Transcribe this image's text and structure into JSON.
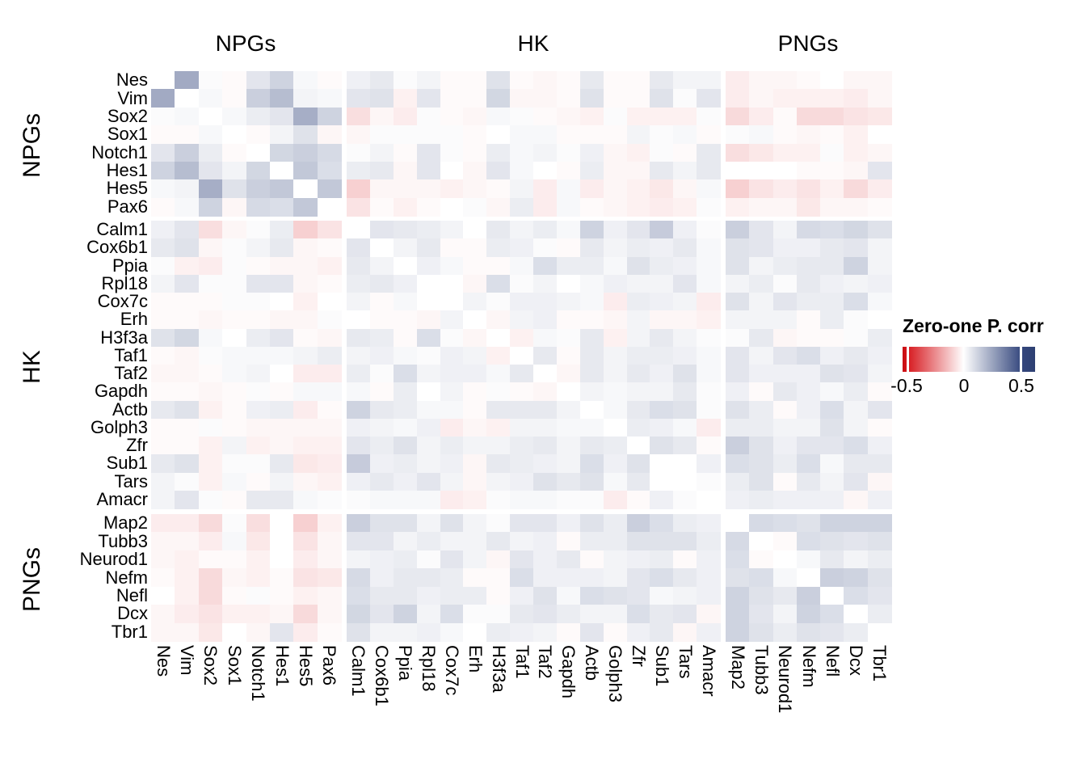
{
  "chart_data": {
    "type": "heatmap",
    "legend": {
      "title": "Zero-one P. corr",
      "ticks": [
        "-0.5",
        "0",
        "0.5"
      ],
      "min": -0.5,
      "max": 0.5,
      "color_negative": "#D6151B",
      "color_zero": "#FFFFFF",
      "color_positive": "#34477D"
    },
    "groups": [
      {
        "label": "NPGs",
        "genes": [
          "Nes",
          "Vim",
          "Sox2",
          "Sox1",
          "Notch1",
          "Hes1",
          "Hes5",
          "Pax6"
        ]
      },
      {
        "label": "HK",
        "genes": [
          "Calm1",
          "Cox6b1",
          "Ppia",
          "Rpl18",
          "Cox7c",
          "Erh",
          "H3f3a",
          "Taf1",
          "Taf2",
          "Gapdh",
          "Actb",
          "Golph3",
          "Zfr",
          "Sub1",
          "Tars",
          "Amacr"
        ]
      },
      {
        "label": "PNGs",
        "genes": [
          "Map2",
          "Tubb3",
          "Neurod1",
          "Nefm",
          "Nefl",
          "Dcx",
          "Tbr1"
        ]
      }
    ],
    "matrix": [
      [
        0,
        0.23,
        0.01,
        -0.01,
        0.07,
        0.12,
        0.02,
        -0.01,
        0.04,
        0.06,
        0.01,
        0.03,
        -0.01,
        -0.01,
        0.08,
        -0.01,
        -0.02,
        -0.01,
        0.06,
        -0.01,
        -0.01,
        0.06,
        0.03,
        0.03,
        -0.04,
        -0.02,
        -0.02,
        -0.01,
        0,
        -0.02,
        -0.02
      ],
      [
        0.23,
        0,
        0.02,
        -0.01,
        0.13,
        0.18,
        0.03,
        0.02,
        0.07,
        0.08,
        -0.03,
        0.07,
        -0.01,
        -0.01,
        0.11,
        -0.02,
        -0.02,
        -0.01,
        0.08,
        -0.01,
        -0.01,
        0.08,
        0.01,
        0.07,
        -0.04,
        -0.02,
        -0.03,
        -0.03,
        -0.03,
        -0.04,
        -0.02
      ],
      [
        0.01,
        0.02,
        0,
        0.02,
        0.05,
        0.07,
        0.22,
        0.12,
        -0.07,
        -0.02,
        -0.04,
        0.01,
        -0.01,
        -0.02,
        0.02,
        0.01,
        -0.01,
        -0.02,
        -0.03,
        0.01,
        -0.03,
        -0.03,
        -0.03,
        0.01,
        -0.08,
        -0.04,
        -0.01,
        -0.08,
        -0.08,
        -0.06,
        -0.05
      ],
      [
        -0.01,
        -0.01,
        0.02,
        0,
        -0.01,
        0.03,
        0.08,
        -0.02,
        -0.02,
        0.01,
        0.01,
        0.01,
        0.01,
        -0.01,
        0,
        0.02,
        0.02,
        -0.01,
        -0.01,
        -0.01,
        0.03,
        0.01,
        0.02,
        -0.01,
        0.01,
        0.02,
        -0.01,
        -0.02,
        -0.01,
        -0.03,
        0
      ],
      [
        0.07,
        0.13,
        0.05,
        -0.01,
        0,
        0.11,
        0.13,
        0.1,
        0.01,
        0.03,
        -0.01,
        0.07,
        0.01,
        -0.01,
        0.05,
        0.02,
        0.03,
        0.01,
        0.04,
        -0.02,
        -0.03,
        0.01,
        -0.01,
        0.06,
        -0.07,
        -0.05,
        -0.03,
        -0.03,
        0.01,
        -0.03,
        -0.02
      ],
      [
        0.12,
        0.18,
        0.07,
        0.03,
        0.11,
        0,
        0.15,
        0.09,
        0.05,
        0.06,
        -0.02,
        0.07,
        0,
        -0.02,
        0.07,
        0.02,
        0,
        -0.01,
        0.05,
        -0.02,
        -0.02,
        0.06,
        0.03,
        0.06,
        0,
        0,
        0,
        -0.01,
        -0.01,
        -0.02,
        0.07
      ],
      [
        0.02,
        0.03,
        0.22,
        0.08,
        0.13,
        0.15,
        0,
        0.15,
        -0.1,
        -0.02,
        -0.02,
        -0.02,
        -0.03,
        -0.02,
        -0.01,
        0.03,
        -0.04,
        0.02,
        -0.04,
        -0.02,
        -0.03,
        -0.05,
        -0.02,
        0.02,
        -0.1,
        -0.06,
        -0.04,
        -0.06,
        -0.03,
        -0.08,
        -0.04
      ],
      [
        -0.01,
        0.02,
        0.12,
        -0.02,
        0.1,
        0.09,
        0.15,
        0,
        -0.06,
        -0.01,
        -0.03,
        -0.01,
        0,
        0.01,
        -0.02,
        0.05,
        -0.04,
        0.02,
        -0.01,
        -0.02,
        -0.03,
        -0.04,
        -0.03,
        0.01,
        -0.03,
        -0.02,
        -0.02,
        -0.05,
        -0.02,
        -0.02,
        -0.01
      ],
      [
        0.04,
        0.07,
        -0.07,
        -0.02,
        0.01,
        0.05,
        -0.1,
        -0.06,
        0,
        0.07,
        0.06,
        0.05,
        0.03,
        0,
        0.06,
        0.03,
        0.05,
        0.02,
        0.12,
        0.04,
        0.07,
        0.14,
        0.04,
        0.01,
        0.13,
        0.07,
        0.03,
        0.1,
        0.09,
        0.11,
        0.08
      ],
      [
        0.06,
        0.08,
        -0.02,
        0.01,
        0.03,
        0.06,
        -0.02,
        -0.01,
        0.07,
        0,
        0.03,
        0.06,
        -0.01,
        -0.01,
        0.05,
        0.04,
        0.01,
        -0.01,
        0.06,
        0.03,
        0.05,
        0.04,
        0.06,
        0.02,
        0.08,
        0.07,
        0.04,
        0.04,
        0.06,
        0.07,
        0.03
      ],
      [
        0.01,
        -0.03,
        -0.04,
        0.01,
        -0.01,
        -0.02,
        -0.02,
        -0.03,
        0.06,
        0.03,
        0,
        0.04,
        0.02,
        -0.01,
        -0.01,
        0.02,
        0.09,
        0.05,
        0.05,
        0.02,
        0.08,
        0.05,
        0.04,
        0.02,
        0.08,
        0.03,
        0.05,
        0.06,
        0.06,
        0.12,
        0.03
      ],
      [
        0.03,
        0.07,
        0.01,
        0.01,
        0.07,
        0.07,
        -0.02,
        -0.01,
        0.05,
        0.06,
        0.04,
        0,
        0,
        -0.02,
        0.09,
        0.01,
        0.03,
        0,
        0.02,
        0.04,
        0.03,
        0.03,
        0.07,
        0.02,
        0.03,
        0.05,
        0.01,
        0.06,
        0.04,
        0.03,
        0.04
      ],
      [
        -0.01,
        -0.01,
        -0.01,
        0.01,
        0.01,
        0,
        -0.03,
        0,
        0.03,
        -0.01,
        0.02,
        0,
        0,
        0.03,
        0.01,
        0.04,
        0.04,
        0.03,
        0.02,
        -0.04,
        0.05,
        0.04,
        0.03,
        -0.04,
        0.08,
        0.03,
        0.07,
        0.05,
        0.05,
        0.09,
        0.02
      ],
      [
        -0.01,
        -0.01,
        -0.02,
        -0.01,
        -0.01,
        -0.02,
        -0.02,
        0.01,
        0,
        -0.01,
        -0.01,
        -0.02,
        0.03,
        0,
        -0.02,
        0.03,
        0.04,
        -0.01,
        -0.01,
        -0.02,
        0.03,
        -0.02,
        -0.02,
        -0.03,
        0.03,
        0.03,
        0.03,
        -0.01,
        0.05,
        0.01,
        0
      ],
      [
        0.08,
        0.11,
        0.02,
        0,
        0.05,
        0.07,
        -0.01,
        -0.02,
        0.06,
        0.05,
        -0.01,
        0.09,
        0.01,
        -0.02,
        0,
        -0.03,
        0.02,
        0.01,
        0.06,
        -0.03,
        0.03,
        0.06,
        0.03,
        0.01,
        0.01,
        0.06,
        -0.02,
        -0.01,
        -0.01,
        0.01,
        0.05
      ],
      [
        -0.01,
        -0.02,
        0.01,
        0.02,
        0.02,
        0.02,
        0.03,
        0.05,
        0.03,
        0.04,
        0.02,
        0.01,
        0.04,
        0.03,
        -0.03,
        0,
        0.06,
        -0.01,
        0.06,
        0.03,
        0.05,
        0.05,
        0.04,
        0.02,
        0.07,
        0.03,
        0.07,
        0.09,
        0.04,
        0.06,
        0.04
      ],
      [
        -0.02,
        -0.02,
        -0.01,
        0.02,
        0.03,
        0,
        -0.04,
        -0.04,
        0.05,
        0.01,
        0.09,
        0.03,
        0.04,
        0.04,
        0.02,
        0.06,
        0,
        -0.02,
        0.06,
        0.03,
        0.06,
        0.04,
        0.08,
        0.02,
        0.07,
        0.04,
        0.04,
        0.04,
        0.08,
        0.07,
        0.03
      ],
      [
        -0.01,
        -0.01,
        -0.02,
        -0.01,
        0.01,
        -0.01,
        0.02,
        0.02,
        0.02,
        -0.01,
        0.05,
        0,
        0.03,
        -0.01,
        0.01,
        -0.01,
        -0.02,
        0,
        0.03,
        0.02,
        0.03,
        0.03,
        0.06,
        0.01,
        0.04,
        -0.01,
        0.06,
        0.04,
        0.02,
        0.05,
        -0.01
      ],
      [
        0.06,
        0.08,
        -0.03,
        -0.01,
        0.04,
        0.05,
        -0.04,
        -0.01,
        0.12,
        0.06,
        0.05,
        0.02,
        0.02,
        -0.01,
        0.06,
        0.06,
        0.06,
        0.03,
        0,
        0.02,
        0.06,
        0.09,
        0.08,
        0.01,
        0.08,
        0.05,
        -0.01,
        0.04,
        0.09,
        0.03,
        0.07
      ],
      [
        -0.01,
        -0.01,
        0.01,
        -0.01,
        -0.02,
        -0.02,
        -0.02,
        -0.02,
        0.04,
        0.03,
        0.02,
        0.04,
        -0.04,
        -0.02,
        -0.03,
        0.03,
        0.03,
        0.02,
        0.02,
        0,
        0.05,
        0.04,
        0.02,
        -0.04,
        0.05,
        0.05,
        0.03,
        0.03,
        0.08,
        0.03,
        -0.01
      ],
      [
        -0.01,
        -0.01,
        -0.03,
        0.03,
        -0.03,
        -0.02,
        -0.03,
        -0.03,
        0.07,
        0.05,
        0.08,
        0.03,
        0.05,
        0.03,
        0.03,
        0.05,
        0.06,
        0.03,
        0.06,
        0.05,
        0,
        0.08,
        0.06,
        -0.01,
        0.13,
        0.08,
        0.04,
        0.07,
        0.07,
        0.09,
        0.04
      ],
      [
        0.06,
        0.08,
        -0.03,
        0.01,
        0.01,
        0.06,
        -0.05,
        -0.04,
        0.14,
        0.04,
        0.05,
        0.03,
        0.04,
        -0.02,
        0.06,
        0.05,
        0.04,
        0.03,
        0.09,
        0.04,
        0.08,
        0,
        0,
        0.04,
        0.09,
        0.08,
        0.05,
        0.09,
        0.02,
        0.06,
        0.06
      ],
      [
        0.03,
        0.01,
        -0.03,
        0.02,
        -0.01,
        0.03,
        -0.02,
        -0.03,
        0.04,
        0.06,
        0.04,
        0.07,
        0.03,
        -0.02,
        0.03,
        0.04,
        0.08,
        0.06,
        0.08,
        0.02,
        0.06,
        0,
        0,
        0.01,
        0.05,
        0.08,
        -0.01,
        0.06,
        0.03,
        0.07,
        -0.02
      ],
      [
        0.03,
        0.07,
        0.01,
        -0.01,
        0.06,
        0.06,
        0.02,
        0.01,
        0.01,
        0.02,
        0.02,
        0.02,
        -0.04,
        -0.03,
        0.01,
        0.02,
        0.02,
        0.01,
        0.01,
        -0.04,
        -0.01,
        0.04,
        0.01,
        0,
        0.04,
        0.05,
        0.04,
        0.04,
        0.04,
        -0.02,
        0.04
      ],
      [
        -0.04,
        -0.04,
        -0.08,
        0.01,
        -0.07,
        0,
        -0.1,
        -0.03,
        0.13,
        0.08,
        0.08,
        0.03,
        0.08,
        0.03,
        0.01,
        0.07,
        0.07,
        0.04,
        0.08,
        0.05,
        0.13,
        0.09,
        0.05,
        0.04,
        0,
        0.1,
        0.09,
        0.08,
        0.12,
        0.12,
        0.12
      ],
      [
        -0.02,
        -0.02,
        -0.04,
        0.02,
        -0.05,
        0,
        -0.06,
        -0.02,
        0.07,
        0.07,
        0.03,
        0.05,
        0.03,
        0.03,
        0.06,
        0.03,
        0.04,
        -0.01,
        0.05,
        0.05,
        0.08,
        0.08,
        0.08,
        0.05,
        0.1,
        0,
        -0.01,
        0.09,
        0.08,
        0.07,
        0.08
      ],
      [
        -0.02,
        -0.03,
        -0.01,
        -0.01,
        -0.03,
        0,
        -0.04,
        -0.02,
        0.03,
        0.04,
        0.05,
        0.01,
        0.07,
        0.03,
        -0.02,
        0.07,
        0.04,
        0.06,
        -0.01,
        0.03,
        0.04,
        0.05,
        -0.01,
        0.04,
        0.09,
        -0.01,
        0,
        0.02,
        0.06,
        0.03,
        0.05
      ],
      [
        -0.01,
        -0.03,
        -0.08,
        -0.02,
        -0.03,
        -0.01,
        -0.06,
        -0.05,
        0.1,
        0.04,
        0.06,
        0.06,
        0.05,
        -0.01,
        -0.01,
        0.09,
        0.04,
        0.04,
        0.04,
        0.03,
        0.07,
        0.09,
        0.06,
        0.04,
        0.08,
        0.09,
        0.02,
        0,
        0.13,
        0.12,
        0.08
      ],
      [
        0,
        -0.03,
        -0.08,
        -0.01,
        0.01,
        -0.01,
        -0.03,
        -0.02,
        0.09,
        0.06,
        0.06,
        0.04,
        0.05,
        0.05,
        -0.01,
        0.04,
        0.08,
        0.02,
        0.09,
        0.08,
        0.07,
        0.02,
        0.03,
        0.04,
        0.12,
        0.08,
        0.06,
        0.13,
        0,
        0.09,
        0.07
      ],
      [
        -0.02,
        -0.04,
        -0.06,
        -0.03,
        -0.03,
        -0.02,
        -0.08,
        -0.02,
        0.11,
        0.07,
        0.12,
        0.03,
        0.09,
        0.01,
        0.01,
        0.06,
        0.07,
        0.05,
        0.03,
        0.03,
        0.09,
        0.06,
        0.07,
        -0.02,
        0.12,
        0.07,
        0.03,
        0.12,
        0.09,
        0,
        0.05
      ],
      [
        -0.02,
        -0.02,
        -0.05,
        0,
        -0.02,
        0.07,
        -0.04,
        -0.01,
        0.08,
        0.03,
        0.03,
        0.04,
        0.02,
        0,
        0.05,
        0.04,
        0.03,
        -0.01,
        0.07,
        -0.01,
        0.04,
        0.06,
        -0.02,
        0.04,
        0.12,
        0.08,
        0.05,
        0.08,
        0.07,
        0.05,
        0
      ]
    ]
  }
}
